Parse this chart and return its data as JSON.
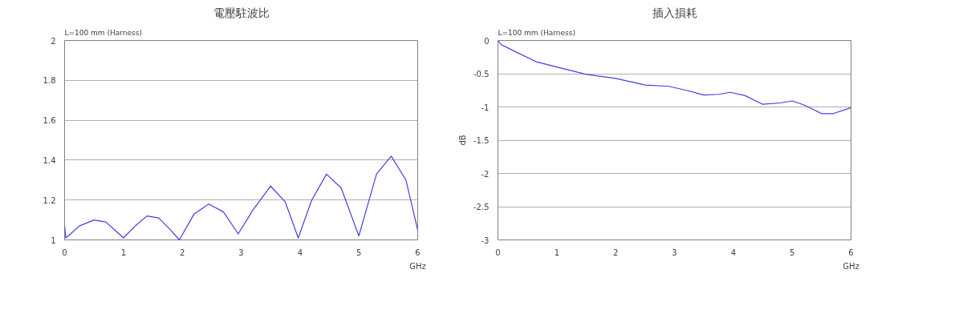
{
  "chart_data": [
    {
      "type": "line",
      "title": "電壓駐波比",
      "annotations": [
        "L=100 mm (Harness)"
      ],
      "xlabel": "GHz",
      "xlim": [
        0,
        6
      ],
      "xticks": [
        0,
        1,
        2,
        3,
        4,
        5,
        6
      ],
      "ylim": [
        1,
        2
      ],
      "yticks": [
        1,
        1.2,
        1.4,
        1.6,
        1.8,
        2
      ],
      "grid": "y",
      "series": [
        {
          "color": "#4040e0",
          "x": [
            0,
            0.02,
            0.1,
            0.25,
            0.5,
            0.7,
            0.85,
            1.0,
            1.2,
            1.4,
            1.6,
            1.8,
            1.95,
            2.2,
            2.45,
            2.7,
            2.95,
            3.2,
            3.5,
            3.75,
            3.97,
            4.2,
            4.45,
            4.7,
            5.0,
            5.3,
            5.55,
            5.8,
            6.0
          ],
          "values": [
            1.07,
            1.01,
            1.03,
            1.07,
            1.1,
            1.09,
            1.05,
            1.01,
            1.07,
            1.12,
            1.11,
            1.05,
            1.0,
            1.13,
            1.18,
            1.14,
            1.03,
            1.15,
            1.27,
            1.19,
            1.01,
            1.2,
            1.33,
            1.26,
            1.02,
            1.33,
            1.42,
            1.3,
            1.05
          ]
        }
      ]
    },
    {
      "type": "line",
      "title": "插入損耗",
      "annotations": [
        "L=100 mm (Harness)"
      ],
      "xlabel": "GHz",
      "ylabel": "dB",
      "xlim": [
        0,
        6
      ],
      "xticks": [
        0,
        1,
        2,
        3,
        4,
        5,
        6
      ],
      "ylim": [
        -3,
        0
      ],
      "yticks": [
        -3,
        -2.5,
        -2,
        -1.5,
        -1,
        -0.5,
        0
      ],
      "grid": "y",
      "series": [
        {
          "color": "#4040e0",
          "x": [
            0,
            0.05,
            0.3,
            0.65,
            1.0,
            1.5,
            2.0,
            2.5,
            2.9,
            3.2,
            3.5,
            3.75,
            3.95,
            4.2,
            4.5,
            4.8,
            5.0,
            5.2,
            5.5,
            5.7,
            6.0
          ],
          "values": [
            0,
            -0.06,
            -0.17,
            -0.32,
            -0.4,
            -0.51,
            -0.57,
            -0.67,
            -0.69,
            -0.75,
            -0.82,
            -0.81,
            -0.78,
            -0.83,
            -0.96,
            -0.94,
            -0.91,
            -0.97,
            -1.1,
            -1.1,
            -1.01
          ]
        }
      ]
    }
  ]
}
